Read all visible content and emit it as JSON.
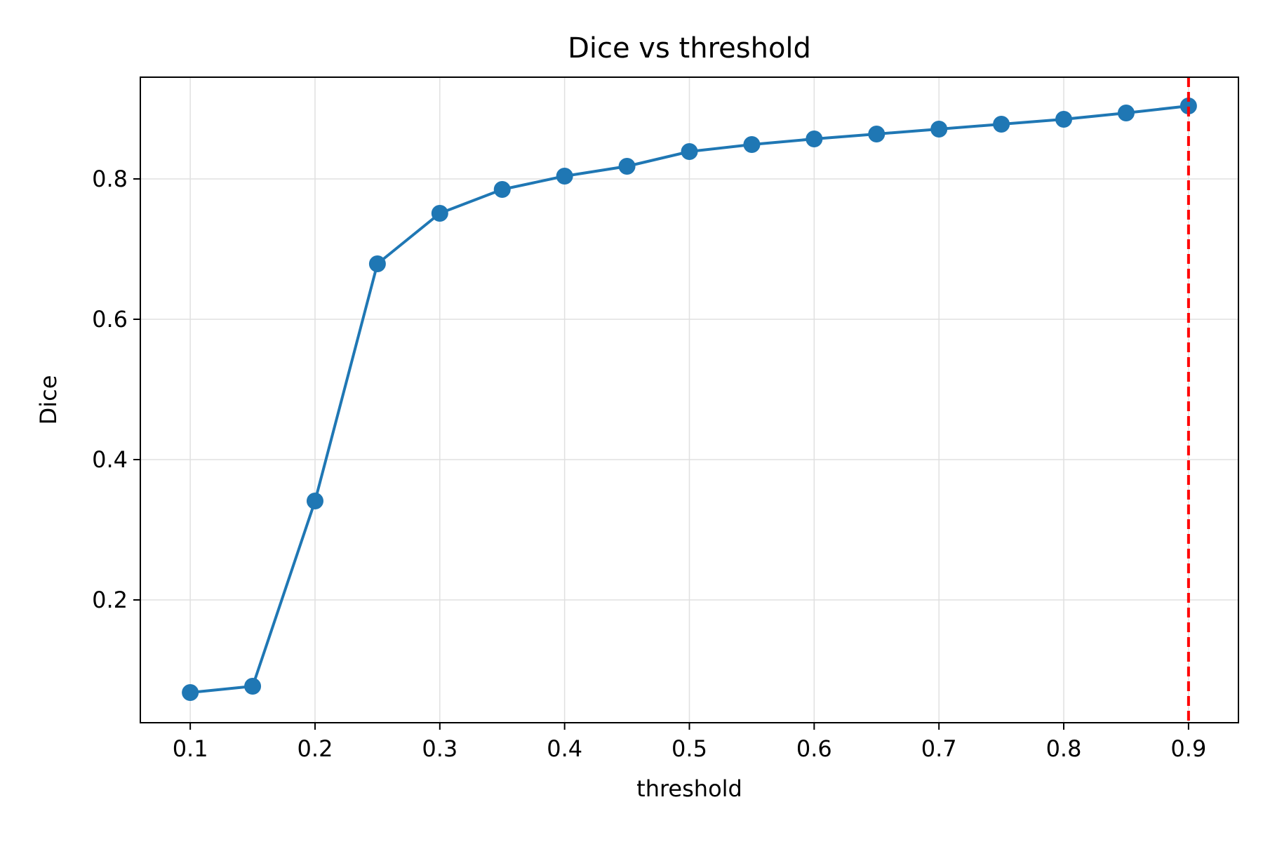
{
  "chart_data": {
    "type": "line",
    "title": "Dice vs threshold",
    "xlabel": "threshold",
    "ylabel": "Dice",
    "x": [
      0.1,
      0.15,
      0.2,
      0.25,
      0.3,
      0.35,
      0.4,
      0.45,
      0.5,
      0.55,
      0.6,
      0.65,
      0.7,
      0.75,
      0.8,
      0.85,
      0.9
    ],
    "series": [
      {
        "values": [
          0.068,
          0.077,
          0.341,
          0.679,
          0.751,
          0.785,
          0.804,
          0.818,
          0.839,
          0.849,
          0.857,
          0.864,
          0.871,
          0.878,
          0.885,
          0.894,
          0.904
        ],
        "color": "#1f77b4",
        "marker": "circle"
      }
    ],
    "xlim": [
      0.06,
      0.94
    ],
    "ylim": [
      0.025,
      0.945
    ],
    "xticks": [
      0.1,
      0.2,
      0.3,
      0.4,
      0.5,
      0.6,
      0.7,
      0.8,
      0.9
    ],
    "xtick_labels": [
      "0.1",
      "0.2",
      "0.3",
      "0.4",
      "0.5",
      "0.6",
      "0.7",
      "0.8",
      "0.9"
    ],
    "yticks": [
      0.2,
      0.4,
      0.6,
      0.8
    ],
    "ytick_labels": [
      "0.2",
      "0.4",
      "0.6",
      "0.8"
    ],
    "grid": true,
    "vline": {
      "x": 0.9,
      "color": "#ff0000",
      "style": "dashed"
    }
  }
}
